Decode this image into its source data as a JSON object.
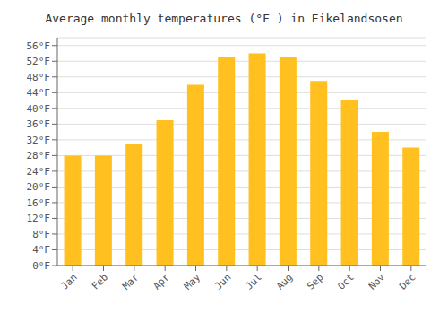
{
  "chart_data": {
    "type": "bar",
    "title": "Average monthly temperatures (°F ) in Eikelandsosen",
    "categories": [
      "Jan",
      "Feb",
      "Mar",
      "Apr",
      "May",
      "Jun",
      "Jul",
      "Aug",
      "Sep",
      "Oct",
      "Nov",
      "Dec"
    ],
    "values": [
      28,
      28,
      31,
      37,
      46,
      53,
      54,
      53,
      47,
      42,
      34,
      30
    ],
    "color": "#FFC020",
    "ylim": [
      0,
      58
    ],
    "yticks": [
      {
        "value": 0,
        "label": "0°F"
      },
      {
        "value": 4,
        "label": "4°F"
      },
      {
        "value": 8,
        "label": "8°F"
      },
      {
        "value": 12,
        "label": "12°F"
      },
      {
        "value": 16,
        "label": "16°F"
      },
      {
        "value": 20,
        "label": "20°F"
      },
      {
        "value": 24,
        "label": "24°F"
      },
      {
        "value": 28,
        "label": "28°F"
      },
      {
        "value": 32,
        "label": "32°F"
      },
      {
        "value": 36,
        "label": "36°F"
      },
      {
        "value": 40,
        "label": "40°F"
      },
      {
        "value": 44,
        "label": "44°F"
      },
      {
        "value": 48,
        "label": "48°F"
      },
      {
        "value": 52,
        "label": "52°F"
      },
      {
        "value": 56,
        "label": "56°F"
      }
    ],
    "grid": true
  }
}
